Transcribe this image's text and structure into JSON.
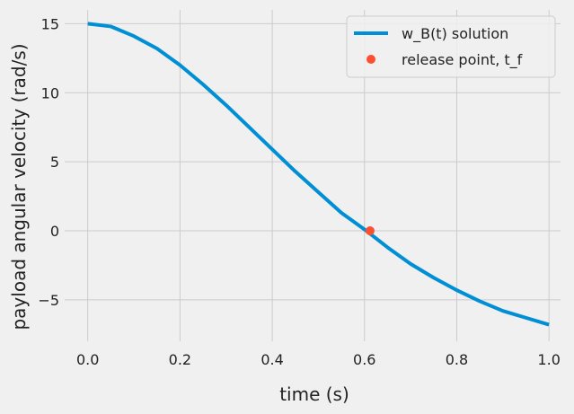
{
  "chart_data": {
    "type": "line",
    "xlabel": "time (s)",
    "ylabel": "payload angular velocity (rad/s)",
    "xlim": [
      -0.05,
      1.025
    ],
    "ylim": [
      -8.0,
      16.0
    ],
    "xticks": [
      0.0,
      0.2,
      0.4,
      0.6,
      0.8,
      1.0
    ],
    "xtick_labels": [
      "0.0",
      "0.2",
      "0.4",
      "0.6",
      "0.8",
      "1.0"
    ],
    "yticks": [
      -5,
      0,
      5,
      10,
      15
    ],
    "ytick_labels": [
      "−5",
      "0",
      "5",
      "10",
      "15"
    ],
    "grid": true,
    "legend_position": "top-right",
    "series": [
      {
        "name": "w_B(t) solution",
        "kind": "line",
        "color": "#008fd5",
        "x": [
          0.0,
          0.05,
          0.1,
          0.15,
          0.2,
          0.25,
          0.3,
          0.35,
          0.4,
          0.45,
          0.5,
          0.55,
          0.6,
          0.65,
          0.7,
          0.75,
          0.8,
          0.85,
          0.9,
          0.95,
          1.0
        ],
        "y": [
          15.0,
          14.8,
          14.1,
          13.2,
          12.0,
          10.6,
          9.1,
          7.5,
          5.9,
          4.3,
          2.8,
          1.3,
          0.1,
          -1.2,
          -2.4,
          -3.4,
          -4.3,
          -5.1,
          -5.8,
          -6.3,
          -6.8
        ]
      },
      {
        "name": "release point, t_f",
        "kind": "scatter",
        "color": "#fc4f30",
        "x": [
          0.612
        ],
        "y": [
          0.0
        ]
      }
    ]
  }
}
